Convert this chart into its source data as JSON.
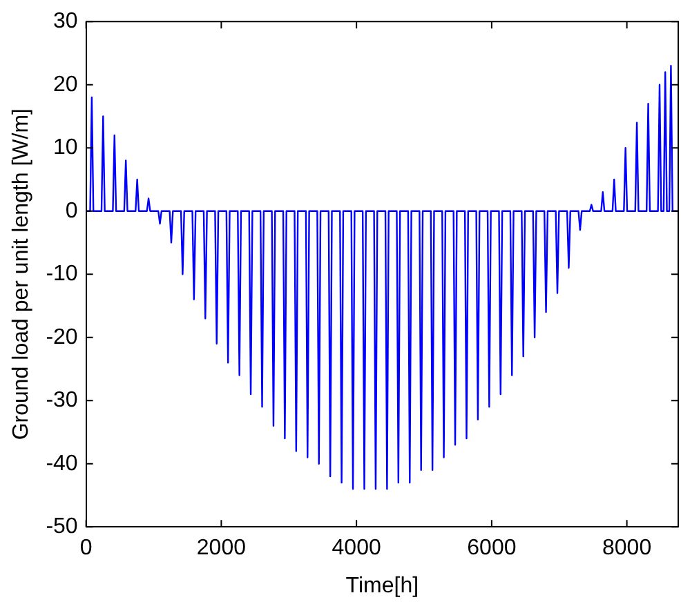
{
  "chart_data": {
    "type": "line",
    "xlabel": "Time[h]",
    "ylabel": "Ground load per unit length [W/m]",
    "x": [
      0,
      60,
      84,
      108,
      228,
      252,
      276,
      396,
      420,
      444,
      564,
      588,
      612,
      732,
      756,
      780,
      900,
      924,
      948,
      1068,
      1092,
      1116,
      1236,
      1260,
      1284,
      1404,
      1428,
      1452,
      1572,
      1596,
      1620,
      1740,
      1764,
      1788,
      1908,
      1932,
      1956,
      2076,
      2100,
      2124,
      2244,
      2268,
      2292,
      2412,
      2436,
      2460,
      2580,
      2604,
      2628,
      2748,
      2772,
      2796,
      2916,
      2940,
      2964,
      3084,
      3108,
      3132,
      3252,
      3276,
      3300,
      3420,
      3444,
      3468,
      3588,
      3612,
      3636,
      3756,
      3780,
      3804,
      3924,
      3948,
      3972,
      4092,
      4116,
      4140,
      4260,
      4284,
      4308,
      4428,
      4452,
      4476,
      4596,
      4620,
      4644,
      4764,
      4788,
      4812,
      4932,
      4956,
      4980,
      5100,
      5124,
      5148,
      5268,
      5292,
      5316,
      5436,
      5460,
      5484,
      5604,
      5628,
      5652,
      5772,
      5796,
      5820,
      5940,
      5964,
      5988,
      6108,
      6132,
      6156,
      6276,
      6300,
      6324,
      6444,
      6468,
      6492,
      6612,
      6636,
      6660,
      6780,
      6804,
      6828,
      6948,
      6972,
      6996,
      7116,
      7140,
      7164,
      7284,
      7308,
      7332,
      7452,
      7476,
      7500,
      7620,
      7644,
      7668,
      7788,
      7812,
      7836,
      7956,
      7980,
      8004,
      8124,
      8148,
      8172,
      8292,
      8316,
      8340,
      8460,
      8484,
      8508,
      8544,
      8568,
      8592,
      8628,
      8652,
      8676,
      8760
    ],
    "series": [
      {
        "color": "#0000ff",
        "values": [
          0,
          0,
          18,
          0,
          0,
          15,
          0,
          0,
          12,
          0,
          0,
          8,
          0,
          0,
          5,
          0,
          0,
          2,
          0,
          0,
          -2,
          0,
          0,
          -5,
          0,
          0,
          -10,
          0,
          0,
          -14,
          0,
          0,
          -17,
          0,
          0,
          -21,
          0,
          0,
          -24,
          0,
          0,
          -26,
          0,
          0,
          -29,
          0,
          0,
          -31,
          0,
          0,
          -34,
          0,
          0,
          -36,
          0,
          0,
          -38,
          0,
          0,
          -39,
          0,
          0,
          -40,
          0,
          0,
          -42,
          0,
          0,
          -43,
          0,
          0,
          -44,
          0,
          0,
          -44,
          0,
          0,
          -44,
          0,
          0,
          -44,
          0,
          0,
          -43,
          0,
          0,
          -43,
          0,
          0,
          -41,
          0,
          0,
          -41,
          0,
          0,
          -39,
          0,
          0,
          -37,
          0,
          0,
          -36,
          0,
          0,
          -33,
          0,
          0,
          -31,
          0,
          0,
          -29,
          0,
          0,
          -26,
          0,
          0,
          -23,
          0,
          0,
          -20,
          0,
          0,
          -16,
          0,
          0,
          -13,
          0,
          0,
          -9,
          0,
          0,
          -3,
          0,
          0,
          1,
          0,
          0,
          3,
          0,
          0,
          5,
          0,
          0,
          10,
          0,
          0,
          14,
          0,
          0,
          17,
          0,
          0,
          20,
          0,
          0,
          22,
          0,
          0,
          23,
          0,
          0
        ]
      }
    ],
    "xlim": [
      0,
      8760
    ],
    "xticks": [
      0,
      2000,
      4000,
      6000,
      8000
    ],
    "ylim": [
      -50,
      30
    ],
    "yticks": [
      -50,
      -40,
      -30,
      -20,
      -10,
      0,
      10,
      20,
      30
    ],
    "grid": false,
    "legend": false,
    "marker": "none",
    "line_style": "solid"
  }
}
